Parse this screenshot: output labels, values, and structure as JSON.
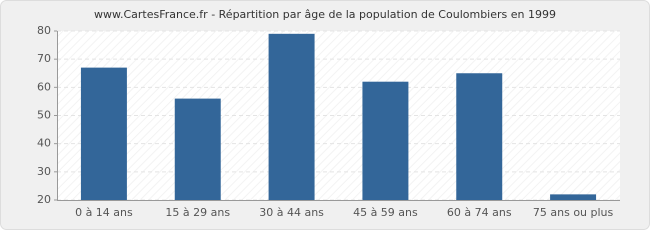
{
  "chart_data": {
    "type": "bar",
    "title": "www.CartesFrance.fr - Répartition par âge de la population de Coulombiers en 1999",
    "categories": [
      "0 à 14 ans",
      "15 à 29 ans",
      "30 à 44 ans",
      "45 à 59 ans",
      "60 à 74 ans",
      "75 ans ou plus"
    ],
    "values": [
      67,
      56,
      79,
      62,
      65,
      22
    ],
    "color": "#336699",
    "ylim": [
      20,
      80
    ],
    "yticks": [
      20,
      30,
      40,
      50,
      60,
      70,
      80
    ],
    "grid": true
  }
}
